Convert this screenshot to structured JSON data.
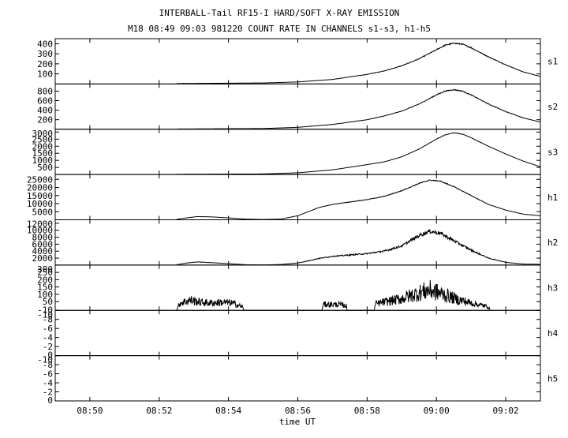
{
  "chart_data": {
    "type": "line",
    "title": "INTERBALL-Tail RF15-I HARD/SOFT X-RAY EMISSION",
    "subtitle": "M18  08:49 09:03 981220  COUNT RATE IN CHANNELS s1-s3, h1-h5",
    "xlabel": "time UT",
    "x_ticks": [
      "08:50",
      "08:52",
      "08:54",
      "08:56",
      "08:58",
      "09:00",
      "09:02"
    ],
    "x_tick_minutes": [
      50,
      52,
      54,
      56,
      58,
      60,
      62
    ],
    "x_range_minutes": [
      49,
      63
    ],
    "panels": [
      {
        "name": "s1",
        "ylim": [
          0,
          450
        ],
        "yticks": [
          100,
          200,
          300,
          400
        ],
        "x": [
          52.5,
          55,
          56,
          57,
          58,
          58.5,
          59,
          59.5,
          60,
          60.25,
          60.5,
          60.75,
          61,
          61.5,
          62,
          62.5,
          63
        ],
        "values": [
          4,
          10,
          20,
          45,
          95,
          130,
          180,
          250,
          340,
          385,
          405,
          395,
          360,
          270,
          190,
          120,
          75
        ],
        "noise": 0.015
      },
      {
        "name": "s2",
        "ylim": [
          0,
          950
        ],
        "yticks": [
          200,
          400,
          600,
          800
        ],
        "x": [
          52.5,
          55,
          56,
          57,
          58,
          58.5,
          59,
          59.5,
          60,
          60.25,
          60.5,
          60.75,
          61,
          61.5,
          62,
          62.5,
          63
        ],
        "values": [
          5,
          15,
          40,
          100,
          200,
          280,
          380,
          530,
          720,
          800,
          830,
          800,
          720,
          530,
          370,
          240,
          150
        ],
        "noise": 0.012
      },
      {
        "name": "s3",
        "ylim": [
          0,
          3200
        ],
        "yticks": [
          500,
          1000,
          1500,
          2000,
          2500,
          3000
        ],
        "x": [
          52.5,
          55,
          56,
          57,
          58,
          58.5,
          59,
          59.5,
          60,
          60.25,
          60.5,
          60.75,
          61,
          61.5,
          62,
          62.5,
          63
        ],
        "values": [
          15,
          40,
          120,
          330,
          700,
          900,
          1250,
          1800,
          2500,
          2800,
          2950,
          2850,
          2600,
          2000,
          1450,
          950,
          550
        ],
        "noise": 0.005
      },
      {
        "name": "h1",
        "ylim": [
          0,
          28000
        ],
        "yticks": [
          5000,
          10000,
          15000,
          20000,
          25000
        ],
        "x": [
          52.5,
          52.8,
          53.1,
          53.5,
          54,
          54.5,
          55,
          55.5,
          56,
          56.3,
          56.6,
          57,
          58,
          58.5,
          59,
          59.5,
          59.8,
          60.1,
          60.5,
          61,
          61.5,
          62,
          62.5,
          63
        ],
        "values": [
          300,
          1200,
          2000,
          1800,
          1200,
          400,
          200,
          400,
          2500,
          5000,
          7500,
          9500,
          12500,
          14500,
          18000,
          22500,
          24500,
          24000,
          20500,
          15000,
          9500,
          6000,
          3500,
          2500
        ],
        "noise": 0.012
      },
      {
        "name": "h2",
        "ylim": [
          0,
          13000
        ],
        "yticks": [
          2000,
          4000,
          6000,
          8000,
          10000,
          12000
        ],
        "x": [
          52.5,
          52.8,
          53.1,
          53.5,
          54,
          54.5,
          55,
          55.5,
          56,
          56.3,
          56.6,
          57,
          58,
          58.5,
          59,
          59.5,
          59.8,
          60.1,
          60.5,
          61,
          61.5,
          62,
          62.5,
          63
        ],
        "values": [
          100,
          600,
          900,
          700,
          400,
          100,
          50,
          150,
          600,
          1200,
          1900,
          2500,
          3300,
          4000,
          5500,
          8500,
          9700,
          9200,
          7000,
          4300,
          2000,
          800,
          300,
          200
        ],
        "noise": 0.06
      },
      {
        "name": "h3",
        "ylim": [
          -10,
          300
        ],
        "yticks": [
          -10,
          50,
          100,
          150,
          200,
          250,
          300
        ],
        "x": [
          52.5,
          52.6,
          52.9,
          53.2,
          53.5,
          53.8,
          54.1,
          54.4,
          54.45,
          56.7,
          56.72,
          57.2,
          57.4,
          57.42,
          58.2,
          58.25,
          59,
          59.5,
          59.8,
          60.2,
          60.6,
          61,
          61.5,
          61.55
        ],
        "values": [
          -10,
          40,
          60,
          45,
          40,
          45,
          40,
          15,
          -10,
          -10,
          30,
          30,
          20,
          -10,
          -10,
          35,
          70,
          110,
          130,
          100,
          65,
          40,
          15,
          -10
        ],
        "noise": 0.5
      },
      {
        "name": "h4",
        "ylim": [
          0,
          10
        ],
        "yticks": [
          0,
          -2,
          -4,
          -6,
          -8,
          -10
        ],
        "x": [],
        "values": [],
        "noise": 0
      },
      {
        "name": "h5",
        "ylim": [
          0,
          10
        ],
        "yticks": [
          0,
          -2,
          -4,
          -6,
          -8,
          -10
        ],
        "x": [],
        "values": [],
        "noise": 0
      }
    ]
  }
}
